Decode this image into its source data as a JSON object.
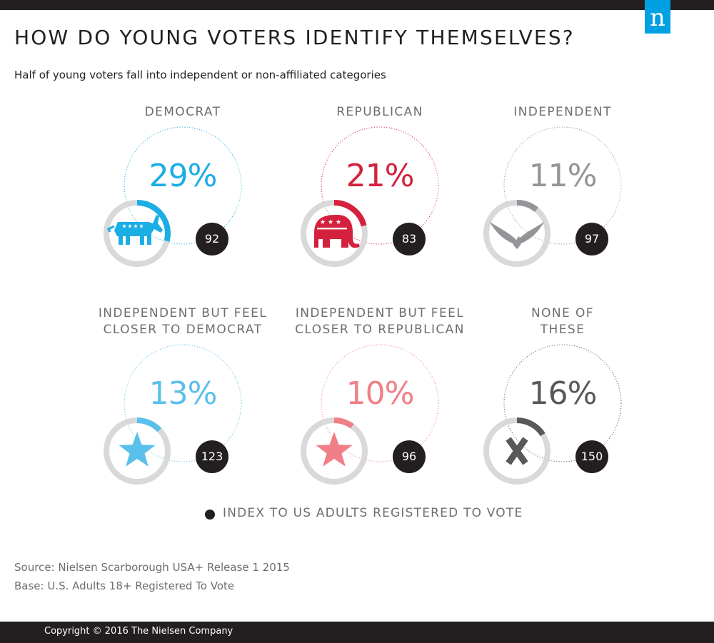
{
  "brand": {
    "logo_letter": "n",
    "logo_color": "#00a0e3"
  },
  "header": {
    "title": "HOW DO YOUNG VOTERS IDENTIFY THEMSELVES?",
    "subtitle": "Half of young voters fall into independent or non-affiliated categories"
  },
  "legend": {
    "label": "INDEX TO US ADULTS REGISTERED TO VOTE"
  },
  "footer": {
    "source": "Source: Nielsen Scarborough USA+ Release 1 2015",
    "base": "Base: U.S. Adults 18+ Registered To Vote",
    "copyright": "Copyright © 2016 The Nielsen Company"
  },
  "chart_data": {
    "type": "pie",
    "categories": [
      "DEMOCRAT",
      "REPUBLICAN",
      "INDEPENDENT",
      "INDEPENDENT BUT FEEL CLOSER TO DEMOCRAT",
      "INDEPENDENT BUT FEEL CLOSER TO REPUBLICAN",
      "NONE OF THESE"
    ],
    "series": [
      {
        "name": "",
        "values": [
          29,
          21,
          11,
          13,
          10,
          16
        ],
        "unit": "%"
      },
      {
        "name": "INDEX TO US ADULTS REGISTERED TO VOTE",
        "values": [
          92,
          83,
          97,
          123,
          96,
          150
        ]
      }
    ],
    "groups": [
      {
        "label_lines": [
          "DEMOCRAT"
        ],
        "percent": 29,
        "percent_label": "29%",
        "index": 92,
        "color": "#1baee4",
        "icon": "donkey-icon"
      },
      {
        "label_lines": [
          "REPUBLICAN"
        ],
        "percent": 21,
        "percent_label": "21%",
        "index": 83,
        "color": "#d4213d",
        "icon": "elephant-icon"
      },
      {
        "label_lines": [
          "INDEPENDENT"
        ],
        "percent": 11,
        "percent_label": "11%",
        "index": 97,
        "color": "#939598",
        "icon": "eagle-icon"
      },
      {
        "label_lines": [
          "INDEPENDENT BUT FEEL",
          "CLOSER TO DEMOCRAT"
        ],
        "percent": 13,
        "percent_label": "13%",
        "index": 123,
        "color": "#5bc0eb",
        "icon": "star-icon"
      },
      {
        "label_lines": [
          "INDEPENDENT BUT FEEL",
          "CLOSER TO REPUBLICAN"
        ],
        "percent": 10,
        "percent_label": "10%",
        "index": 96,
        "color": "#f07f87",
        "icon": "star-icon"
      },
      {
        "label_lines": [
          "NONE OF",
          "THESE"
        ],
        "percent": 16,
        "percent_label": "16%",
        "index": 150,
        "color": "#58595b",
        "icon": "x-icon"
      }
    ],
    "ring_track_color": "#d9d9da",
    "xlabel": "",
    "ylabel": "",
    "legend_position": "bottom-center"
  }
}
